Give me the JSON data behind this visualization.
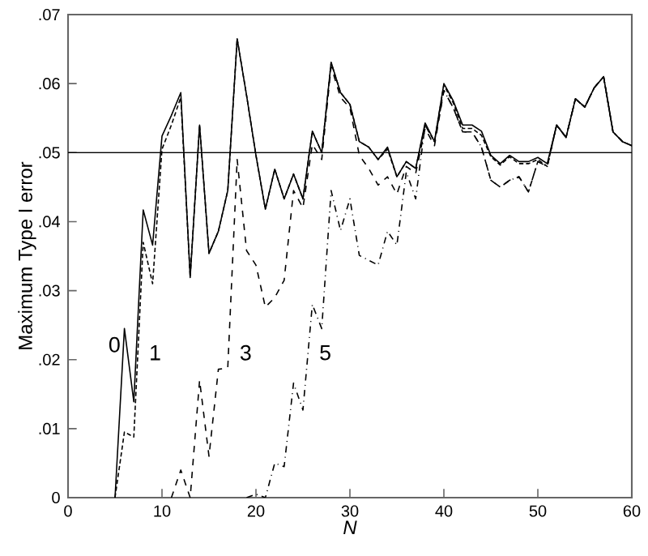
{
  "chart_data": {
    "type": "line",
    "xlabel": "N",
    "ylabel": "Maximum Type I error",
    "xlim": [
      0,
      60
    ],
    "ylim": [
      0,
      0.07
    ],
    "xticks": [
      0,
      10,
      20,
      30,
      40,
      50,
      60
    ],
    "yticks": [
      {
        "value": 0,
        "label": "0"
      },
      {
        "value": 0.01,
        "label": ".01"
      },
      {
        "value": 0.02,
        "label": ".02"
      },
      {
        "value": 0.03,
        "label": ".03"
      },
      {
        "value": 0.04,
        "label": ".04"
      },
      {
        "value": 0.05,
        "label": ".05"
      },
      {
        "value": 0.06,
        "label": ".06"
      },
      {
        "value": 0.07,
        "label": ".07"
      }
    ],
    "marker": "none",
    "ref_lines": [
      {
        "axis": "y",
        "value": 0.05,
        "color": "#000000"
      }
    ],
    "series": [
      {
        "name": "0",
        "color": "#000000",
        "line_style": "solid",
        "x": [
          5,
          6,
          7,
          8,
          9,
          10,
          11,
          12,
          13,
          14,
          15,
          16,
          17,
          18,
          19,
          20,
          21,
          22,
          23,
          24,
          25,
          26,
          27,
          28,
          29,
          30,
          31,
          32,
          33,
          34,
          35,
          36,
          37,
          38,
          39,
          40,
          41,
          42,
          43,
          44,
          45,
          46,
          47,
          48,
          49,
          50,
          51,
          52,
          53,
          54,
          55,
          56,
          57,
          58,
          59,
          60
        ],
        "values": [
          0,
          0.0245,
          0.0139,
          0.0417,
          0.0366,
          0.0524,
          0.0554,
          0.0587,
          0.0319,
          0.054,
          0.0354,
          0.0386,
          0.0445,
          0.0665,
          0.0583,
          0.0496,
          0.0418,
          0.0476,
          0.0433,
          0.0469,
          0.0433,
          0.0531,
          0.05,
          0.0631,
          0.0587,
          0.057,
          0.0516,
          0.0508,
          0.049,
          0.0508,
          0.0465,
          0.0487,
          0.0477,
          0.0543,
          0.0516,
          0.06,
          0.0575,
          0.054,
          0.054,
          0.0531,
          0.0496,
          0.0484,
          0.0496,
          0.0487,
          0.0487,
          0.0493,
          0.0484,
          0.054,
          0.0522,
          0.0578,
          0.0566,
          0.0594,
          0.061,
          0.053,
          0.0516,
          0.051
        ]
      },
      {
        "name": "1",
        "color": "#000000",
        "line_style": "dotted",
        "x": [
          5,
          6,
          7,
          8,
          9,
          10,
          11,
          12,
          13,
          14,
          15,
          16,
          17,
          18,
          19,
          20,
          21,
          22,
          23,
          24,
          25,
          26,
          27,
          28,
          29,
          30,
          31,
          32,
          33,
          34,
          35,
          36,
          37,
          38,
          39,
          40,
          41,
          42,
          43,
          44,
          45,
          46,
          47,
          48,
          49,
          50,
          51,
          52,
          53,
          54,
          55,
          56,
          57,
          58,
          59,
          60
        ],
        "values": [
          0,
          0.0095,
          0.0088,
          0.037,
          0.031,
          0.0505,
          0.054,
          0.058,
          0.032,
          0.054,
          0.0354,
          0.0386,
          0.0445,
          0.0665,
          0.0583,
          0.0496,
          0.0418,
          0.0476,
          0.0433,
          0.0469,
          0.0433,
          0.0531,
          0.05,
          0.063,
          0.0587,
          0.057,
          0.0516,
          0.0508,
          0.049,
          0.0505,
          0.0465,
          0.0487,
          0.0477,
          0.054,
          0.0516,
          0.0598,
          0.0572,
          0.0535,
          0.0535,
          0.0525,
          0.0494,
          0.0482,
          0.0494,
          0.0484,
          0.0484,
          0.049,
          0.048,
          0.054,
          0.0522,
          0.0578,
          0.0566,
          0.0594,
          0.061,
          0.053,
          0.0516,
          0.051
        ]
      },
      {
        "name": "3",
        "color": "#000000",
        "line_style": "dashed",
        "x": [
          11,
          12,
          13,
          14,
          15,
          16,
          17,
          18,
          19,
          20,
          21,
          22,
          23,
          24,
          25,
          26,
          27,
          28,
          29,
          30,
          31,
          32,
          33,
          34,
          35,
          36,
          37,
          38,
          39,
          40,
          41,
          42,
          43,
          44,
          45,
          46,
          47,
          48,
          49,
          50,
          51,
          52,
          53,
          54,
          55,
          56,
          57,
          58,
          59,
          60
        ],
        "values": [
          0,
          0.004,
          0,
          0.017,
          0.006,
          0.0186,
          0.0188,
          0.049,
          0.0358,
          0.0337,
          0.0276,
          0.029,
          0.0315,
          0.0445,
          0.042,
          0.0512,
          0.049,
          0.0625,
          0.058,
          0.0565,
          0.0496,
          0.0477,
          0.0453,
          0.0465,
          0.044,
          0.048,
          0.047,
          0.0535,
          0.051,
          0.059,
          0.0565,
          0.053,
          0.053,
          0.0508,
          0.046,
          0.045,
          0.046,
          0.0465,
          0.0443,
          0.0487,
          0.048,
          0.054,
          0.0522,
          0.0578,
          0.0566,
          0.0594,
          0.061,
          0.053,
          0.0516,
          0.051
        ]
      },
      {
        "name": "5",
        "color": "#000000",
        "line_style": "dashdot",
        "x": [
          19,
          20,
          21,
          22,
          23,
          24,
          25,
          26,
          27,
          28,
          29,
          30,
          31,
          32,
          33,
          34,
          35,
          36,
          37,
          38,
          39,
          40,
          41,
          42,
          43,
          44,
          45,
          46,
          47,
          48,
          49,
          50,
          51,
          52,
          53,
          54,
          55,
          56,
          57,
          58,
          59,
          60
        ],
        "values": [
          0,
          0.0005,
          0,
          0.005,
          0.0045,
          0.0166,
          0.0127,
          0.028,
          0.0245,
          0.0445,
          0.0387,
          0.0433,
          0.0351,
          0.0344,
          0.0337,
          0.0386,
          0.0366,
          0.0472,
          0.0433,
          0.054,
          0.0516,
          0.059,
          0.0565,
          0.053,
          0.053,
          0.0508,
          0.046,
          0.045,
          0.046,
          0.0465,
          0.0443,
          0.0487,
          0.048,
          0.054,
          0.0522,
          0.0578,
          0.0566,
          0.0594,
          0.061,
          0.053,
          0.0516,
          0.051
        ]
      }
    ]
  }
}
